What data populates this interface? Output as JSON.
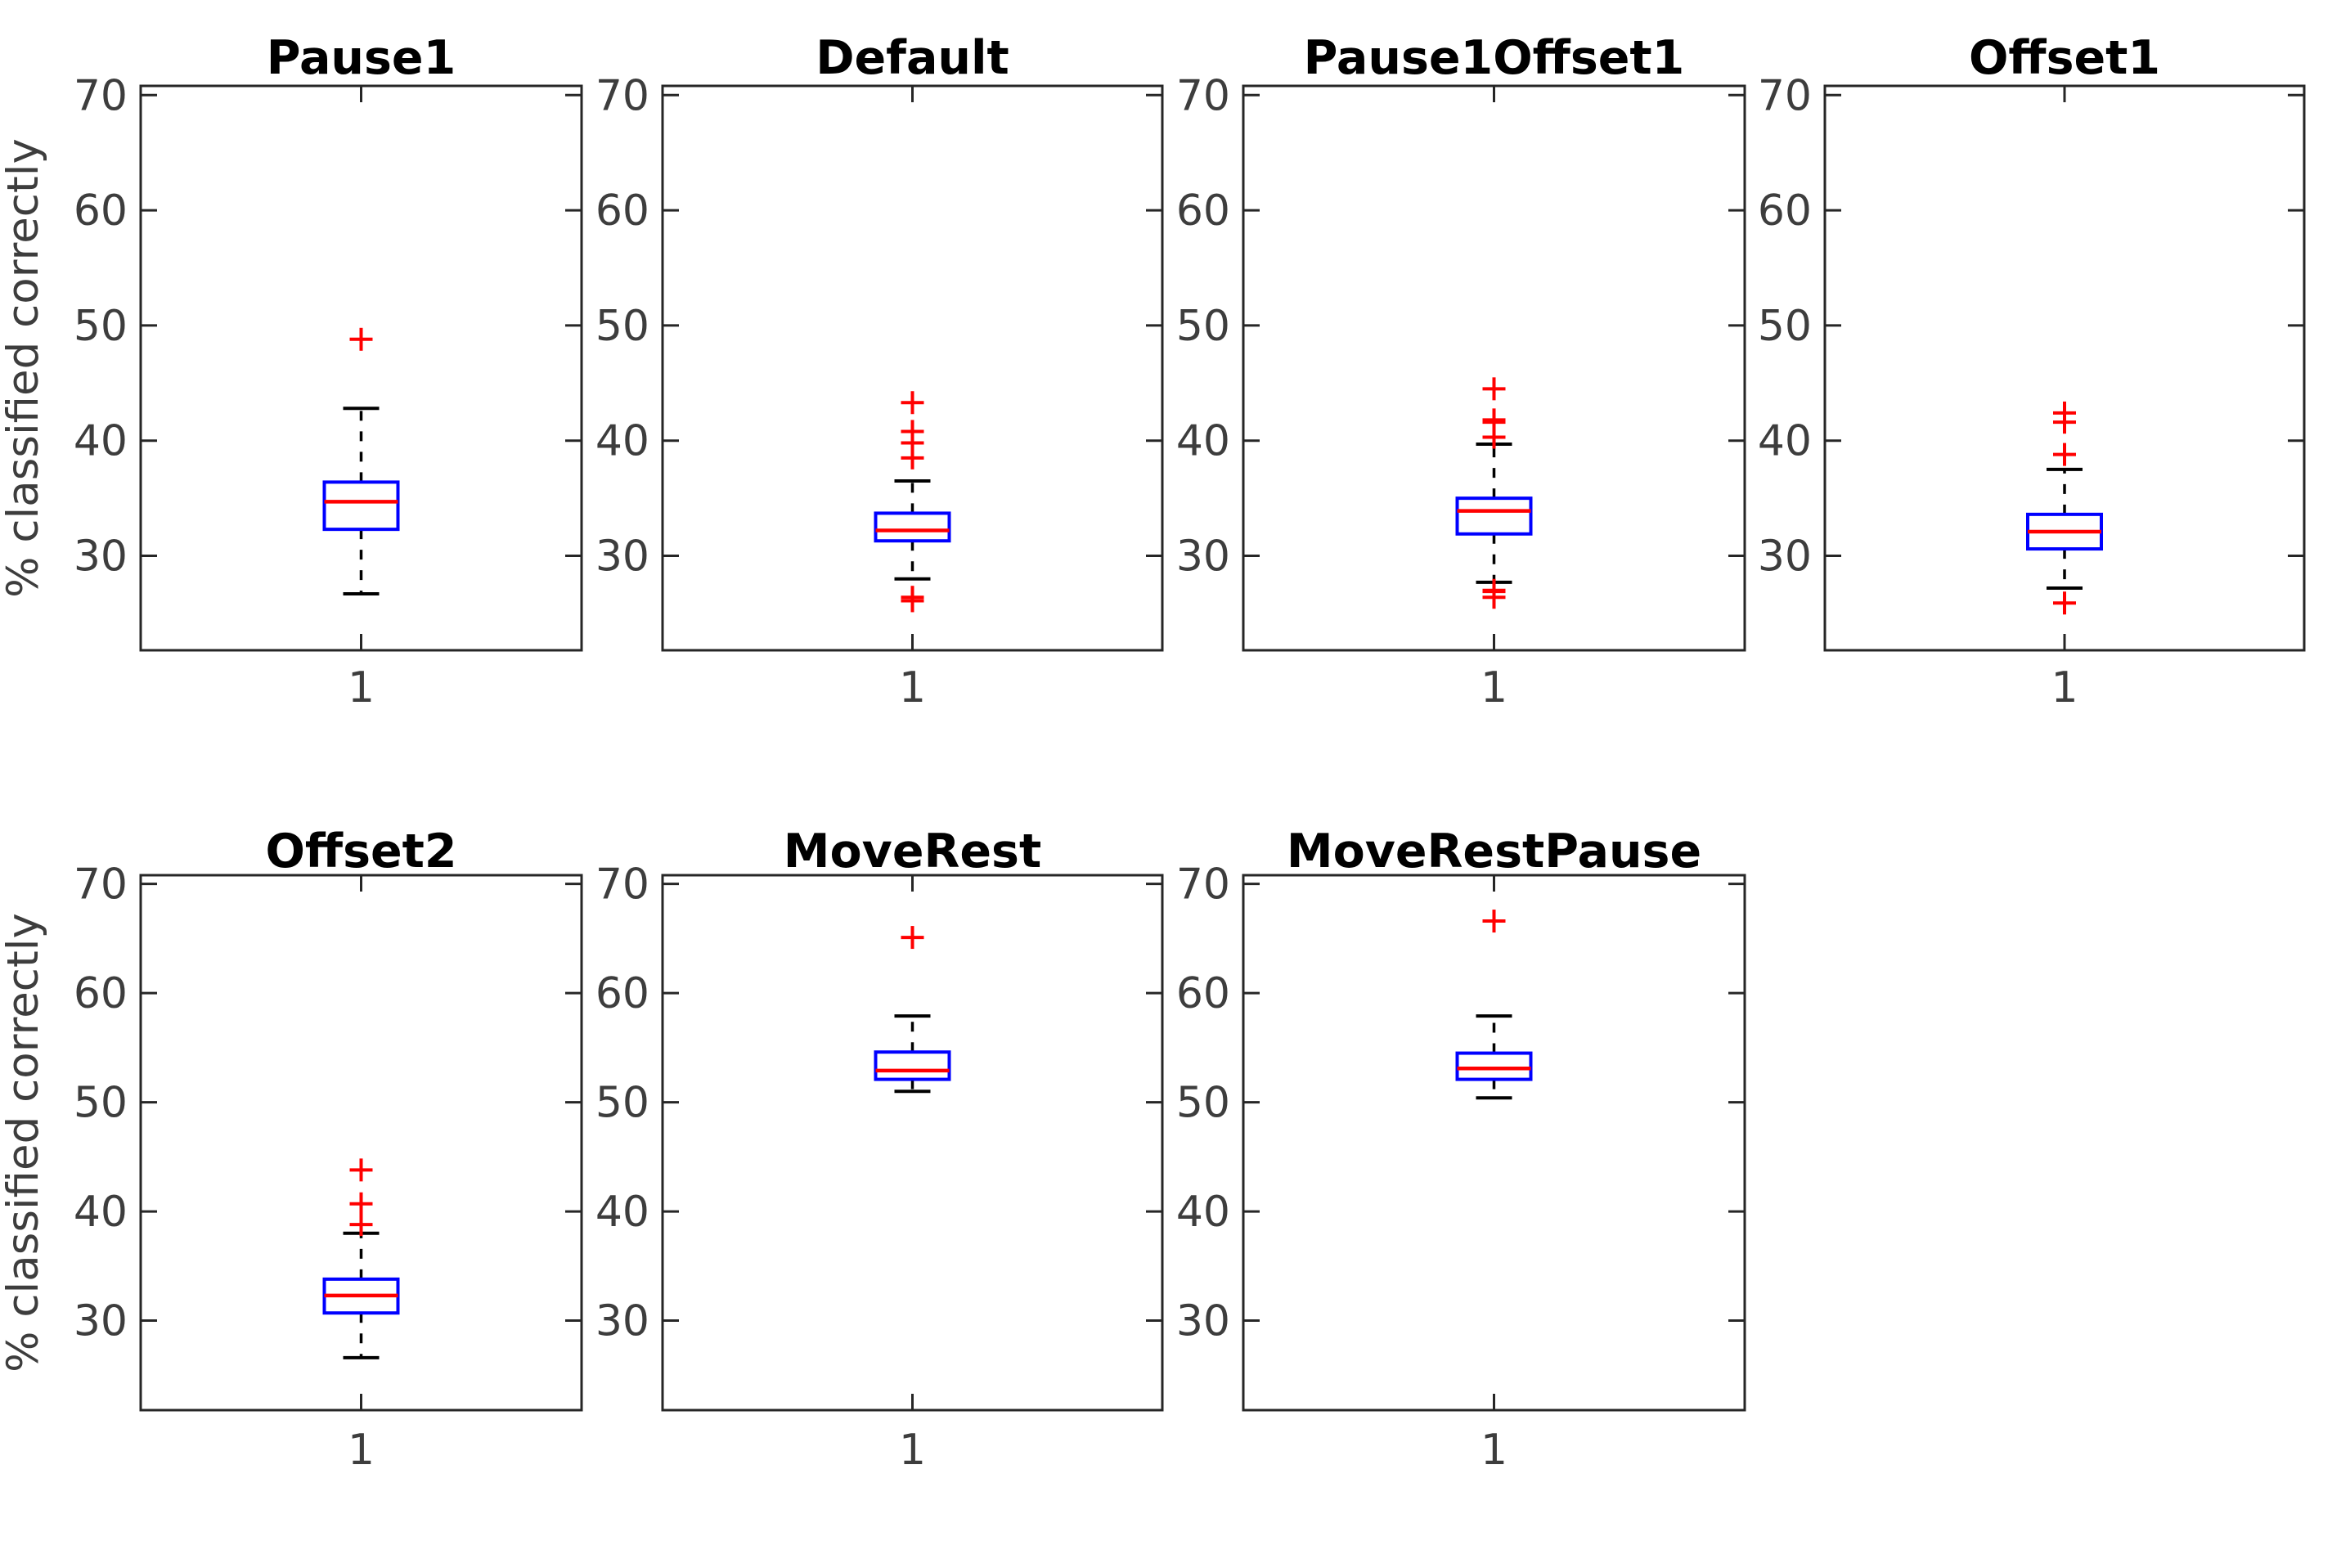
{
  "figure": {
    "ylabel": "% classified correctly",
    "xtick_label": "1",
    "ytick_labels": [
      "30",
      "40",
      "50",
      "60",
      "70"
    ],
    "colors": {
      "box": "#0000ff",
      "median": "#ff0000",
      "outlier": "#ff0000",
      "whisker": "#000000",
      "axis": "#262626",
      "tick_text": "#3d3d3d",
      "title_text": "#000000",
      "background": "#ffffff"
    }
  },
  "chart_data": [
    {
      "type": "boxplot",
      "title": "Pause1",
      "categories": [
        "1"
      ],
      "ylabel": "% classified correctly",
      "ylim": [
        21.8,
        70.8
      ],
      "yticks": [
        30,
        40,
        50,
        60,
        70
      ],
      "stats": {
        "whisker_low": 26.7,
        "q1": 32.3,
        "median": 34.7,
        "q3": 36.4,
        "whisker_high": 42.8
      },
      "outliers": [
        48.8
      ]
    },
    {
      "type": "boxplot",
      "title": "Default",
      "categories": [
        "1"
      ],
      "ylabel": "% classified correctly",
      "ylim": [
        21.8,
        70.8
      ],
      "yticks": [
        30,
        40,
        50,
        60,
        70
      ],
      "stats": {
        "whisker_low": 28.0,
        "q1": 31.3,
        "median": 32.2,
        "q3": 33.7,
        "whisker_high": 36.5
      },
      "outliers": [
        43.3,
        40.8,
        39.8,
        38.5,
        26.4,
        26.1
      ]
    },
    {
      "type": "boxplot",
      "title": "Pause1Offset1",
      "categories": [
        "1"
      ],
      "ylabel": "% classified correctly",
      "ylim": [
        21.8,
        70.8
      ],
      "yticks": [
        30,
        40,
        50,
        60,
        70
      ],
      "stats": {
        "whisker_low": 27.7,
        "q1": 31.9,
        "median": 33.9,
        "q3": 35.0,
        "whisker_high": 39.7
      },
      "outliers": [
        44.5,
        41.8,
        41.6,
        40.3,
        27.0,
        26.9,
        26.4
      ]
    },
    {
      "type": "boxplot",
      "title": "Offset1",
      "categories": [
        "1"
      ],
      "ylabel": "% classified correctly",
      "ylim": [
        21.8,
        70.8
      ],
      "yticks": [
        30,
        40,
        50,
        60,
        70
      ],
      "stats": {
        "whisker_low": 27.2,
        "q1": 30.6,
        "median": 32.1,
        "q3": 33.6,
        "whisker_high": 37.5
      },
      "outliers": [
        42.4,
        41.6,
        38.8,
        25.9
      ]
    },
    {
      "type": "boxplot",
      "title": "Offset2",
      "categories": [
        "1"
      ],
      "ylabel": "% classified correctly",
      "ylim": [
        21.8,
        70.8
      ],
      "yticks": [
        30,
        40,
        50,
        60,
        70
      ],
      "stats": {
        "whisker_low": 26.6,
        "q1": 30.7,
        "median": 32.3,
        "q3": 33.8,
        "whisker_high": 38.0
      },
      "outliers": [
        43.8,
        40.7,
        38.8
      ]
    },
    {
      "type": "boxplot",
      "title": "MoveRest",
      "categories": [
        "1"
      ],
      "ylabel": "% classified correctly",
      "ylim": [
        21.8,
        70.8
      ],
      "yticks": [
        30,
        40,
        50,
        60,
        70
      ],
      "stats": {
        "whisker_low": 51.0,
        "q1": 52.1,
        "median": 52.9,
        "q3": 54.6,
        "whisker_high": 57.9
      },
      "outliers": [
        65.1
      ]
    },
    {
      "type": "boxplot",
      "title": "MoveRestPause",
      "categories": [
        "1"
      ],
      "ylabel": "% classified correctly",
      "ylim": [
        21.8,
        70.8
      ],
      "yticks": [
        30,
        40,
        50,
        60,
        70
      ],
      "stats": {
        "whisker_low": 50.4,
        "q1": 52.1,
        "median": 53.1,
        "q3": 54.5,
        "whisker_high": 57.9
      },
      "outliers": [
        66.6
      ]
    }
  ]
}
